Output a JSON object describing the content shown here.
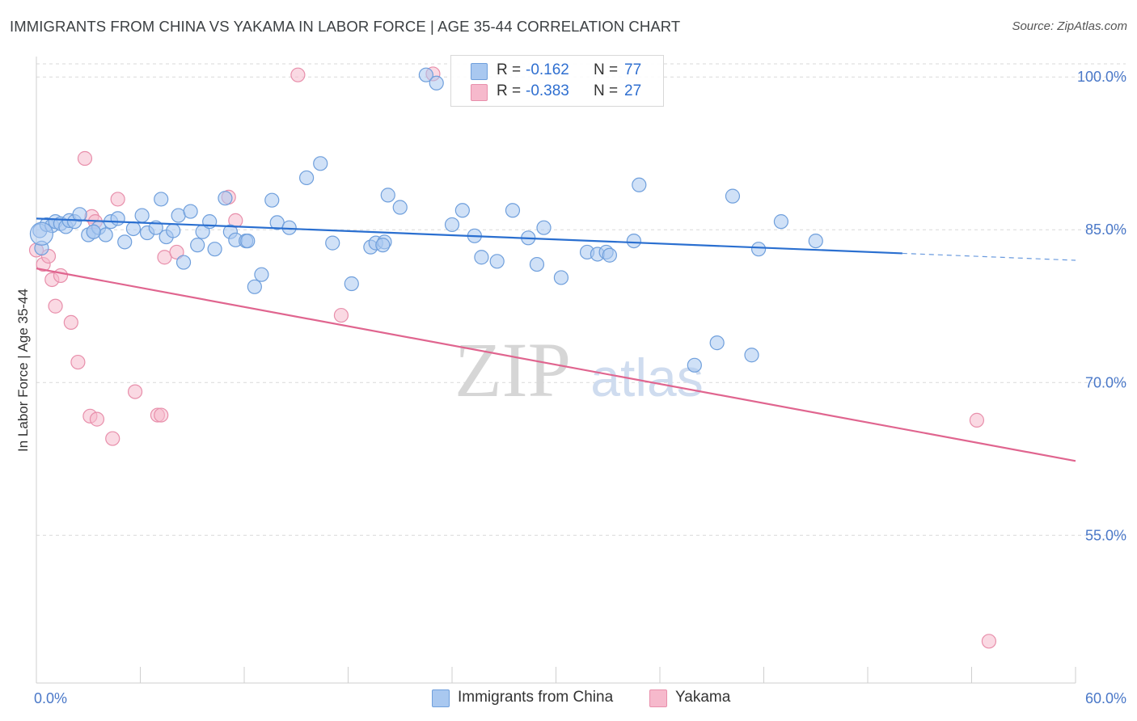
{
  "title": "IMMIGRANTS FROM CHINA VS YAKAMA IN LABOR FORCE | AGE 35-44 CORRELATION CHART",
  "source": "Source: ZipAtlas.com",
  "watermark": {
    "zip": "ZIP",
    "atlas": "atlas"
  },
  "colors": {
    "china_fill": "#a9c8f0",
    "china_stroke": "#6f9fdc",
    "china_line": "#2a6fd0",
    "yakama_fill": "#f6b9cc",
    "yakama_stroke": "#e88fab",
    "yakama_line": "#e0658f",
    "grid": "#d9d9d9",
    "tick_text": "#4a78c8"
  },
  "legend": {
    "rows": [
      {
        "r_label": "R =",
        "r_value": "-0.162",
        "n_label": "N =",
        "n_value": "77"
      },
      {
        "r_label": "R =",
        "r_value": "-0.383",
        "n_label": "N =",
        "n_value": "27"
      }
    ]
  },
  "chart_data": {
    "type": "scatter",
    "title": "IMMIGRANTS FROM CHINA VS YAKAMA IN LABOR FORCE | AGE 35-44 CORRELATION CHART",
    "xlabel": "",
    "ylabel": "In Labor Force | Age 35-44",
    "xlim": [
      0,
      60
    ],
    "ylim": [
      40.5,
      102
    ],
    "x_tick_labels": [
      "0.0%",
      "60.0%"
    ],
    "y_ticks": [
      55,
      70,
      85,
      100
    ],
    "y_tick_labels": [
      "55.0%",
      "70.0%",
      "85.0%",
      "100.0%"
    ],
    "grid": true,
    "legend_position": "bottom",
    "series": [
      {
        "name": "Immigrants from China",
        "R": -0.162,
        "N": 77,
        "trend": {
          "x0": 0,
          "y0": 86.1,
          "x1": 60,
          "y1": 82.0,
          "solid_until": 50.0
        },
        "points": [
          [
            0.2,
            84.9
          ],
          [
            0.3,
            83.2
          ],
          [
            0.6,
            85.5
          ],
          [
            0.9,
            85.4
          ],
          [
            1.1,
            85.8
          ],
          [
            1.4,
            85.6
          ],
          [
            1.7,
            85.3
          ],
          [
            1.9,
            85.9
          ],
          [
            2.2,
            85.8
          ],
          [
            2.5,
            86.5
          ],
          [
            3.0,
            84.5
          ],
          [
            3.3,
            84.8
          ],
          [
            3.6,
            85.2
          ],
          [
            4.0,
            84.5
          ],
          [
            4.3,
            85.8
          ],
          [
            4.7,
            86.1
          ],
          [
            5.1,
            83.8
          ],
          [
            5.6,
            85.1
          ],
          [
            6.1,
            86.4
          ],
          [
            6.4,
            84.7
          ],
          [
            6.9,
            85.2
          ],
          [
            7.2,
            88.0
          ],
          [
            7.5,
            84.3
          ],
          [
            7.9,
            84.9
          ],
          [
            8.2,
            86.4
          ],
          [
            8.5,
            81.8
          ],
          [
            8.9,
            86.8
          ],
          [
            9.3,
            83.5
          ],
          [
            9.6,
            84.8
          ],
          [
            10.0,
            85.8
          ],
          [
            10.3,
            83.1
          ],
          [
            10.9,
            88.1
          ],
          [
            11.2,
            84.8
          ],
          [
            11.5,
            84.0
          ],
          [
            12.1,
            83.9
          ],
          [
            12.6,
            79.4
          ],
          [
            13.0,
            80.6
          ],
          [
            13.6,
            87.9
          ],
          [
            13.9,
            85.7
          ],
          [
            14.6,
            85.2
          ],
          [
            15.6,
            90.1
          ],
          [
            16.4,
            91.5
          ],
          [
            17.1,
            83.7
          ],
          [
            18.2,
            79.7
          ],
          [
            19.3,
            83.3
          ],
          [
            19.6,
            83.7
          ],
          [
            20.1,
            83.8
          ],
          [
            20.3,
            88.4
          ],
          [
            21.0,
            87.2
          ],
          [
            22.5,
            100.2
          ],
          [
            23.1,
            99.4
          ],
          [
            24.0,
            85.5
          ],
          [
            24.6,
            86.9
          ],
          [
            25.3,
            84.4
          ],
          [
            25.7,
            82.3
          ],
          [
            26.6,
            81.9
          ],
          [
            27.5,
            86.9
          ],
          [
            28.4,
            84.2
          ],
          [
            28.9,
            81.6
          ],
          [
            29.3,
            85.2
          ],
          [
            30.3,
            80.3
          ],
          [
            31.8,
            82.8
          ],
          [
            32.4,
            82.6
          ],
          [
            32.9,
            82.8
          ],
          [
            33.1,
            82.5
          ],
          [
            34.5,
            83.9
          ],
          [
            34.8,
            89.4
          ],
          [
            38.0,
            71.7
          ],
          [
            39.3,
            73.9
          ],
          [
            40.2,
            88.3
          ],
          [
            41.3,
            72.7
          ],
          [
            41.7,
            83.1
          ],
          [
            43.0,
            85.8
          ],
          [
            45.0,
            83.9
          ],
          [
            3.3,
            84.8
          ],
          [
            12.2,
            83.9
          ],
          [
            20.0,
            83.5
          ]
        ]
      },
      {
        "name": "Yakama",
        "R": -0.383,
        "N": 27,
        "trend": {
          "x0": 0,
          "y0": 81.2,
          "x1": 60,
          "y1": 62.3
        },
        "points": [
          [
            0.0,
            83.0
          ],
          [
            0.4,
            81.6
          ],
          [
            0.7,
            82.4
          ],
          [
            0.9,
            80.1
          ],
          [
            1.1,
            77.5
          ],
          [
            1.4,
            80.5
          ],
          [
            2.0,
            75.9
          ],
          [
            2.4,
            72.0
          ],
          [
            2.8,
            92.0
          ],
          [
            3.1,
            66.7
          ],
          [
            3.2,
            86.3
          ],
          [
            3.4,
            85.8
          ],
          [
            3.5,
            66.4
          ],
          [
            4.4,
            64.5
          ],
          [
            4.7,
            88.0
          ],
          [
            5.7,
            69.1
          ],
          [
            7.0,
            66.8
          ],
          [
            7.2,
            66.8
          ],
          [
            7.4,
            82.3
          ],
          [
            8.1,
            82.8
          ],
          [
            11.1,
            88.2
          ],
          [
            11.5,
            85.9
          ],
          [
            15.1,
            100.2
          ],
          [
            17.6,
            76.6
          ],
          [
            22.9,
            100.3
          ],
          [
            54.3,
            66.3
          ],
          [
            55.0,
            44.6
          ]
        ]
      }
    ]
  }
}
